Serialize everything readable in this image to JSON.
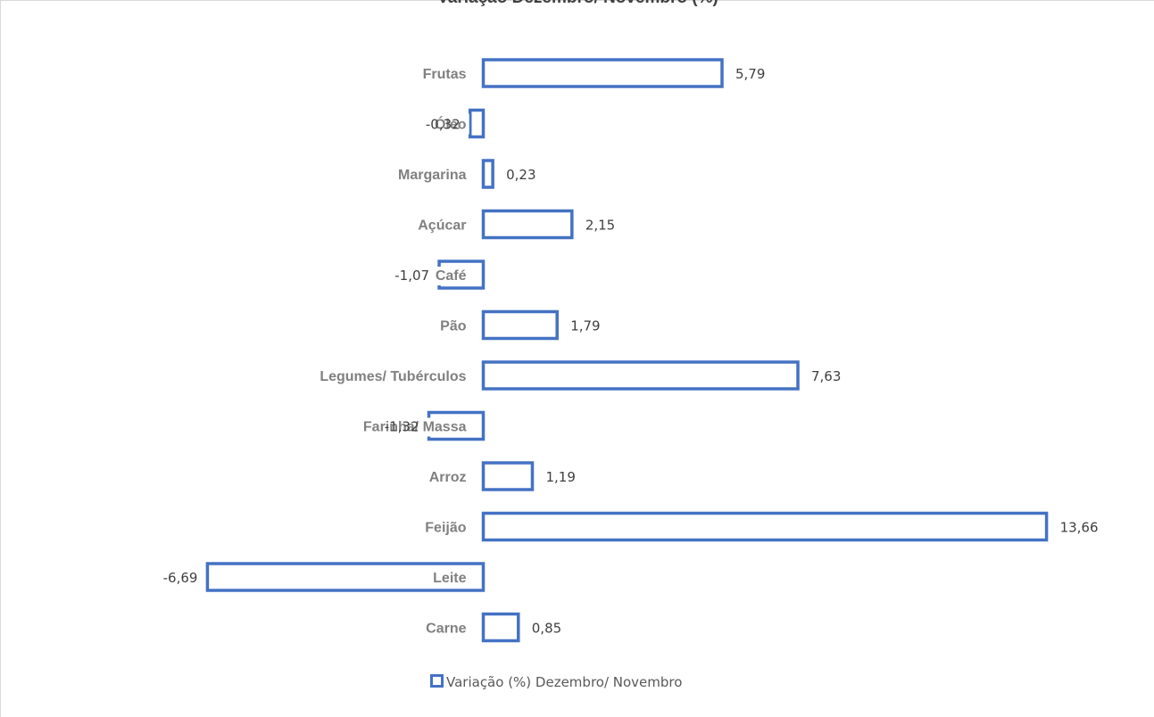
{
  "chart_data": {
    "type": "bar",
    "orientation": "horizontal",
    "title": "Variação Dezembro/ Novembro (%)",
    "categories": [
      "Frutas",
      "Óleo",
      "Margarina",
      "Açúcar",
      "Café",
      "Pão",
      "Legumes/ Tubérculos",
      "Farinha/ Massa",
      "Arroz",
      "Feijão",
      "Leite",
      "Carne"
    ],
    "series": [
      {
        "name": "Variação (%) Dezembro/ Novembro",
        "values": [
          5.79,
          -0.32,
          0.23,
          2.15,
          -1.07,
          1.79,
          7.63,
          -1.32,
          1.19,
          13.66,
          -6.69,
          0.85
        ],
        "labels": [
          "5,79",
          "-0,32",
          "0,23",
          "2,15",
          "-1,07",
          "1,79",
          "7,63",
          "-1,32",
          "1,19",
          "13,66",
          "-6,69",
          "0,85"
        ]
      }
    ],
    "bar_style": "outline",
    "bar_color": "#4472c4",
    "legend": "bottom-center",
    "grid": false,
    "xlim": [
      -7,
      14
    ]
  }
}
